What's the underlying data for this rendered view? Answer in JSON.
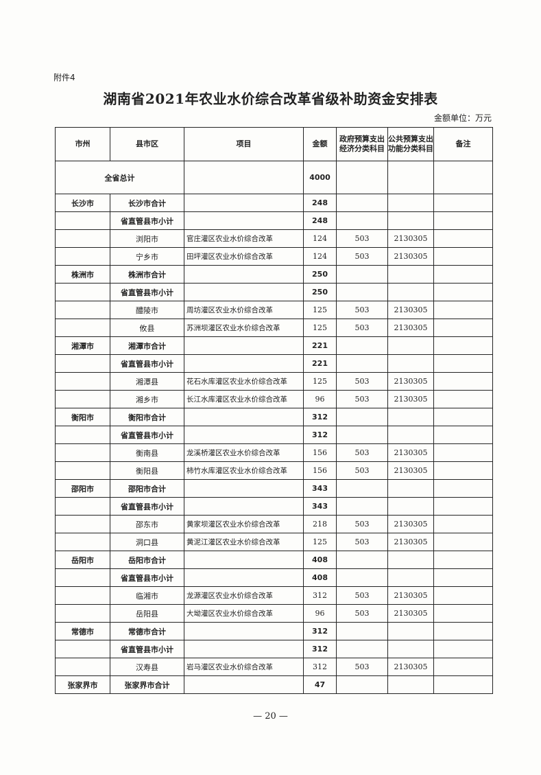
{
  "attachment": "附件4",
  "title": "湖南省2021年农业水价综合改革省级补助资金安排表",
  "unit": "金额单位：万元",
  "headers": [
    "市州",
    "县市区",
    "项目",
    "金额",
    "政府预算支出经济分类科目",
    "公共预算支出功能分类科目",
    "备注"
  ],
  "grand_total": {
    "label": "全省总计",
    "amount": "4000"
  },
  "rows": [
    {
      "type": "total",
      "city": "长沙市",
      "county": "长沙市合计",
      "project": "",
      "amount": "248",
      "econ": "",
      "func": ""
    },
    {
      "type": "sub",
      "city": "",
      "county": "省直管县市小计",
      "project": "",
      "amount": "248",
      "econ": "",
      "func": ""
    },
    {
      "type": "item",
      "city": "",
      "county": "浏阳市",
      "project": "官庄灌区农业水价综合改革",
      "amount": "124",
      "econ": "503",
      "func": "2130305"
    },
    {
      "type": "item",
      "city": "",
      "county": "宁乡市",
      "project": "田坪灌区农业水价综合改革",
      "amount": "124",
      "econ": "503",
      "func": "2130305"
    },
    {
      "type": "total",
      "city": "株洲市",
      "county": "株洲市合计",
      "project": "",
      "amount": "250",
      "econ": "",
      "func": ""
    },
    {
      "type": "sub",
      "city": "",
      "county": "省直管县市小计",
      "project": "",
      "amount": "250",
      "econ": "",
      "func": ""
    },
    {
      "type": "item",
      "city": "",
      "county": "醴陵市",
      "project": "周坊灌区农业水价综合改革",
      "amount": "125",
      "econ": "503",
      "func": "2130305"
    },
    {
      "type": "item",
      "city": "",
      "county": "攸县",
      "project": "苏洲坝灌区农业水价综合改革",
      "amount": "125",
      "econ": "503",
      "func": "2130305"
    },
    {
      "type": "total",
      "city": "湘潭市",
      "county": "湘潭市合计",
      "project": "",
      "amount": "221",
      "econ": "",
      "func": ""
    },
    {
      "type": "sub",
      "city": "",
      "county": "省直管县市小计",
      "project": "",
      "amount": "221",
      "econ": "",
      "func": ""
    },
    {
      "type": "item",
      "city": "",
      "county": "湘潭县",
      "project": "花石水库灌区农业水价综合改革",
      "amount": "125",
      "econ": "503",
      "func": "2130305"
    },
    {
      "type": "item",
      "city": "",
      "county": "湘乡市",
      "project": "长江水库灌区农业水价综合改革",
      "amount": "96",
      "econ": "503",
      "func": "2130305"
    },
    {
      "type": "total",
      "city": "衡阳市",
      "county": "衡阳市合计",
      "project": "",
      "amount": "312",
      "econ": "",
      "func": ""
    },
    {
      "type": "sub",
      "city": "",
      "county": "省直管县市小计",
      "project": "",
      "amount": "312",
      "econ": "",
      "func": ""
    },
    {
      "type": "item",
      "city": "",
      "county": "衡南县",
      "project": "龙溪桥灌区农业水价综合改革",
      "amount": "156",
      "econ": "503",
      "func": "2130305"
    },
    {
      "type": "item",
      "city": "",
      "county": "衡阳县",
      "project": "柿竹水库灌区农业水价综合改革",
      "amount": "156",
      "econ": "503",
      "func": "2130305"
    },
    {
      "type": "total",
      "city": "邵阳市",
      "county": "邵阳市合计",
      "project": "",
      "amount": "343",
      "econ": "",
      "func": ""
    },
    {
      "type": "sub",
      "city": "",
      "county": "省直管县市小计",
      "project": "",
      "amount": "343",
      "econ": "",
      "func": ""
    },
    {
      "type": "item",
      "city": "",
      "county": "邵东市",
      "project": "黄家坝灌区农业水价综合改革",
      "amount": "218",
      "econ": "503",
      "func": "2130305"
    },
    {
      "type": "item",
      "city": "",
      "county": "洞口县",
      "project": "黄泥江灌区农业水价综合改革",
      "amount": "125",
      "econ": "503",
      "func": "2130305"
    },
    {
      "type": "total",
      "city": "岳阳市",
      "county": "岳阳市合计",
      "project": "",
      "amount": "408",
      "econ": "",
      "func": ""
    },
    {
      "type": "sub",
      "city": "",
      "county": "省直管县市小计",
      "project": "",
      "amount": "408",
      "econ": "",
      "func": ""
    },
    {
      "type": "item",
      "city": "",
      "county": "临湘市",
      "project": "龙源灌区农业水价综合改革",
      "amount": "312",
      "econ": "503",
      "func": "2130305"
    },
    {
      "type": "item",
      "city": "",
      "county": "岳阳县",
      "project": "大坳灌区农业水价综合改革",
      "amount": "96",
      "econ": "503",
      "func": "2130305"
    },
    {
      "type": "total",
      "city": "常德市",
      "county": "常德市合计",
      "project": "",
      "amount": "312",
      "econ": "",
      "func": ""
    },
    {
      "type": "sub",
      "city": "",
      "county": "省直管县市小计",
      "project": "",
      "amount": "312",
      "econ": "",
      "func": ""
    },
    {
      "type": "item",
      "city": "",
      "county": "汉寿县",
      "project": "岩马灌区农业水价综合改革",
      "amount": "312",
      "econ": "503",
      "func": "2130305"
    },
    {
      "type": "total",
      "city": "张家界市",
      "county": "张家界市合计",
      "project": "",
      "amount": "47",
      "econ": "",
      "func": ""
    }
  ],
  "page_number": "— 20 —"
}
